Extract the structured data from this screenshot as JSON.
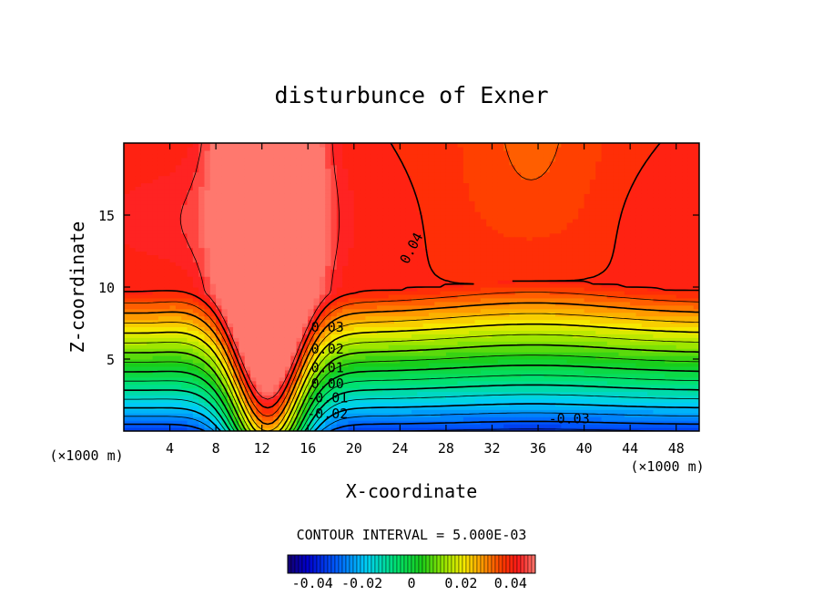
{
  "chart_data": {
    "type": "contour",
    "title": "disturbunce of Exner",
    "xlabel": "X-coordinate",
    "ylabel": "Z-coordinate",
    "x_unit_left": "(×1000 m)",
    "x_unit_right": "(×1000 m)",
    "xlim": [
      0,
      50
    ],
    "ylim": [
      0,
      20
    ],
    "xticks": [
      4,
      8,
      12,
      16,
      20,
      24,
      28,
      32,
      36,
      40,
      44,
      48
    ],
    "yticks": [
      5,
      10,
      15
    ],
    "contour_interval_text": "CONTOUR INTERVAL = 5.000E-03",
    "contour_labels": [
      {
        "text": "0.04",
        "x": 25.0,
        "z": 12.7,
        "angle": -62
      },
      {
        "text": "0.03",
        "x": 17.7,
        "z": 7.2,
        "angle": 0
      },
      {
        "text": "0.02",
        "x": 17.7,
        "z": 5.7,
        "angle": 0
      },
      {
        "text": "0.01",
        "x": 17.7,
        "z": 4.4,
        "angle": 0
      },
      {
        "text": "0.00",
        "x": 17.7,
        "z": 3.3,
        "angle": 0
      },
      {
        "text": "-0.01",
        "x": 17.7,
        "z": 2.3,
        "angle": 0
      },
      {
        "text": "-0.02",
        "x": 17.7,
        "z": 1.2,
        "angle": 0
      },
      {
        "text": "-0.03",
        "x": 38.7,
        "z": 0.85,
        "angle": 0
      }
    ],
    "colorbar": {
      "range": [
        -0.05,
        0.05
      ],
      "ticks": [
        -0.04,
        -0.02,
        0,
        0.02,
        0.04
      ],
      "tick_labels": [
        "-0.04",
        "-0.02",
        "0",
        "0.02",
        "0.04"
      ]
    },
    "field_structure": {
      "surface_value": -0.035,
      "column_minimum": {
        "x": 36,
        "value": -0.036
      },
      "upper_maximum_left": {
        "x": 9,
        "z": 14,
        "value": 0.046
      },
      "upper_maximum_right": {
        "x": 50,
        "z": 14,
        "value": 0.043
      },
      "saddle": {
        "x": 35,
        "z": 13
      }
    }
  }
}
